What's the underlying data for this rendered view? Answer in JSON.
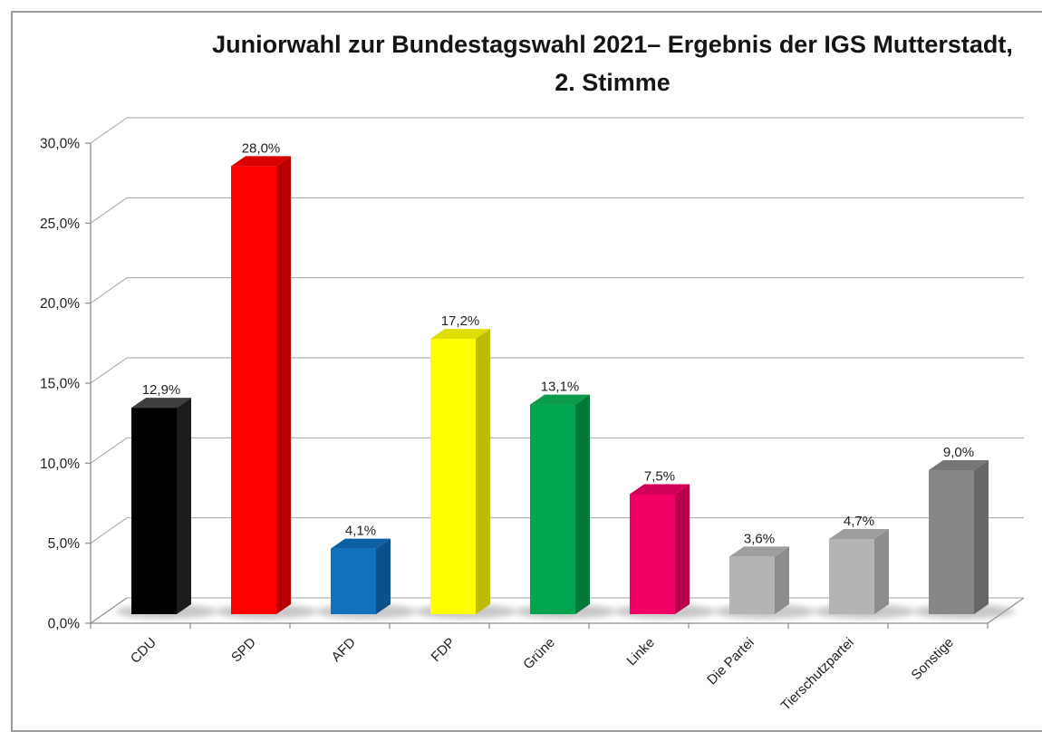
{
  "title": {
    "line1": "Juniorwahl zur Bundestagswahl 2021– Ergebnis der IGS Mutterstadt,",
    "line2": "2. Stimme"
  },
  "chart_data": {
    "type": "bar",
    "style": "3d-column",
    "title": "Juniorwahl zur Bundestagswahl 2021– Ergebnis der IGS Mutterstadt, 2. Stimme",
    "categories": [
      "CDU",
      "SPD",
      "AFD",
      "FDP",
      "Grüne",
      "Linke",
      "Die Partei",
      "Tierschutzpartei",
      "Sonstige"
    ],
    "values": [
      12.9,
      28.0,
      4.1,
      17.2,
      13.1,
      7.5,
      3.6,
      4.7,
      9.0
    ],
    "value_labels": [
      "12,9%",
      "28,0%",
      "4,1%",
      "17,2%",
      "13,1%",
      "7,5%",
      "3,6%",
      "4,7%",
      "9,0%"
    ],
    "bar_colors": [
      {
        "front": "#000000",
        "top": "#3f3f3f",
        "side": "#1c1c1c"
      },
      {
        "front": "#fe0000",
        "top": "#d90000",
        "side": "#b80000"
      },
      {
        "front": "#1072bf",
        "top": "#0d5fa3",
        "side": "#0b528d"
      },
      {
        "front": "#ffff00",
        "top": "#dede00",
        "side": "#bdbd00"
      },
      {
        "front": "#00a550",
        "top": "#0d9b4b",
        "side": "#007a36"
      },
      {
        "front": "#f10066",
        "top": "#d10058",
        "side": "#b6004c"
      },
      {
        "front": "#b4b4b4",
        "top": "#9e9e9e",
        "side": "#8d8d8d"
      },
      {
        "front": "#b4b4b4",
        "top": "#9e9e9e",
        "side": "#8d8d8d"
      },
      {
        "front": "#878787",
        "top": "#767676",
        "side": "#676767"
      }
    ],
    "xlabel": "",
    "ylabel": "",
    "ylim": [
      0,
      30
    ],
    "y_tick_values": [
      0,
      5,
      10,
      15,
      20,
      25,
      30
    ],
    "y_tick_labels": [
      "0,0%",
      "5,0%",
      "10,0%",
      "15,0%",
      "20,0%",
      "25,0%",
      "30,0%"
    ],
    "grid": true,
    "legend": false
  },
  "style_colors": {
    "gridline": "#a3a3a3",
    "axis": "#8c8c8c",
    "text": "#1f1f1f",
    "shadow": "#9a9a9a",
    "frame_border": "#9a9a9a"
  }
}
